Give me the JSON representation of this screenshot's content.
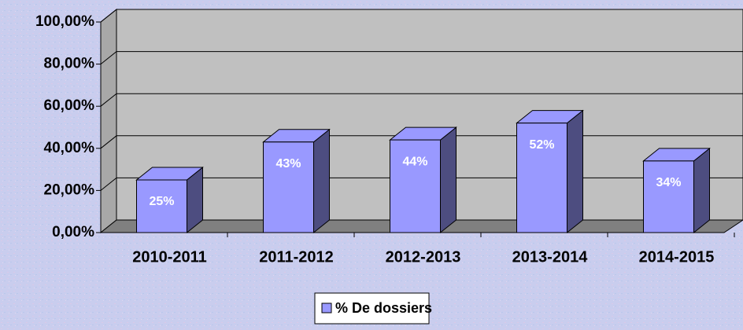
{
  "chart_data": {
    "type": "bar",
    "categories": [
      "2010-2011",
      "2011-2012",
      "2012-2013",
      "2013-2014",
      "2014-2015"
    ],
    "series": [
      {
        "name": "% De dossiers",
        "color": "#9999ff",
        "values": [
          25,
          43,
          44,
          52,
          34
        ],
        "value_labels": [
          "25%",
          "43%",
          "44%",
          "52%",
          "34%"
        ]
      }
    ],
    "ylim": [
      0,
      100
    ],
    "yticks": [
      {
        "value": 0,
        "label": "0,00%"
      },
      {
        "value": 20,
        "label": "20,00%"
      },
      {
        "value": 40,
        "label": "40,00%"
      },
      {
        "value": 60,
        "label": "60,00%"
      },
      {
        "value": 80,
        "label": "80,00%"
      },
      {
        "value": 100,
        "label": "100,00%"
      }
    ],
    "grid": true,
    "legend": "bottom"
  }
}
